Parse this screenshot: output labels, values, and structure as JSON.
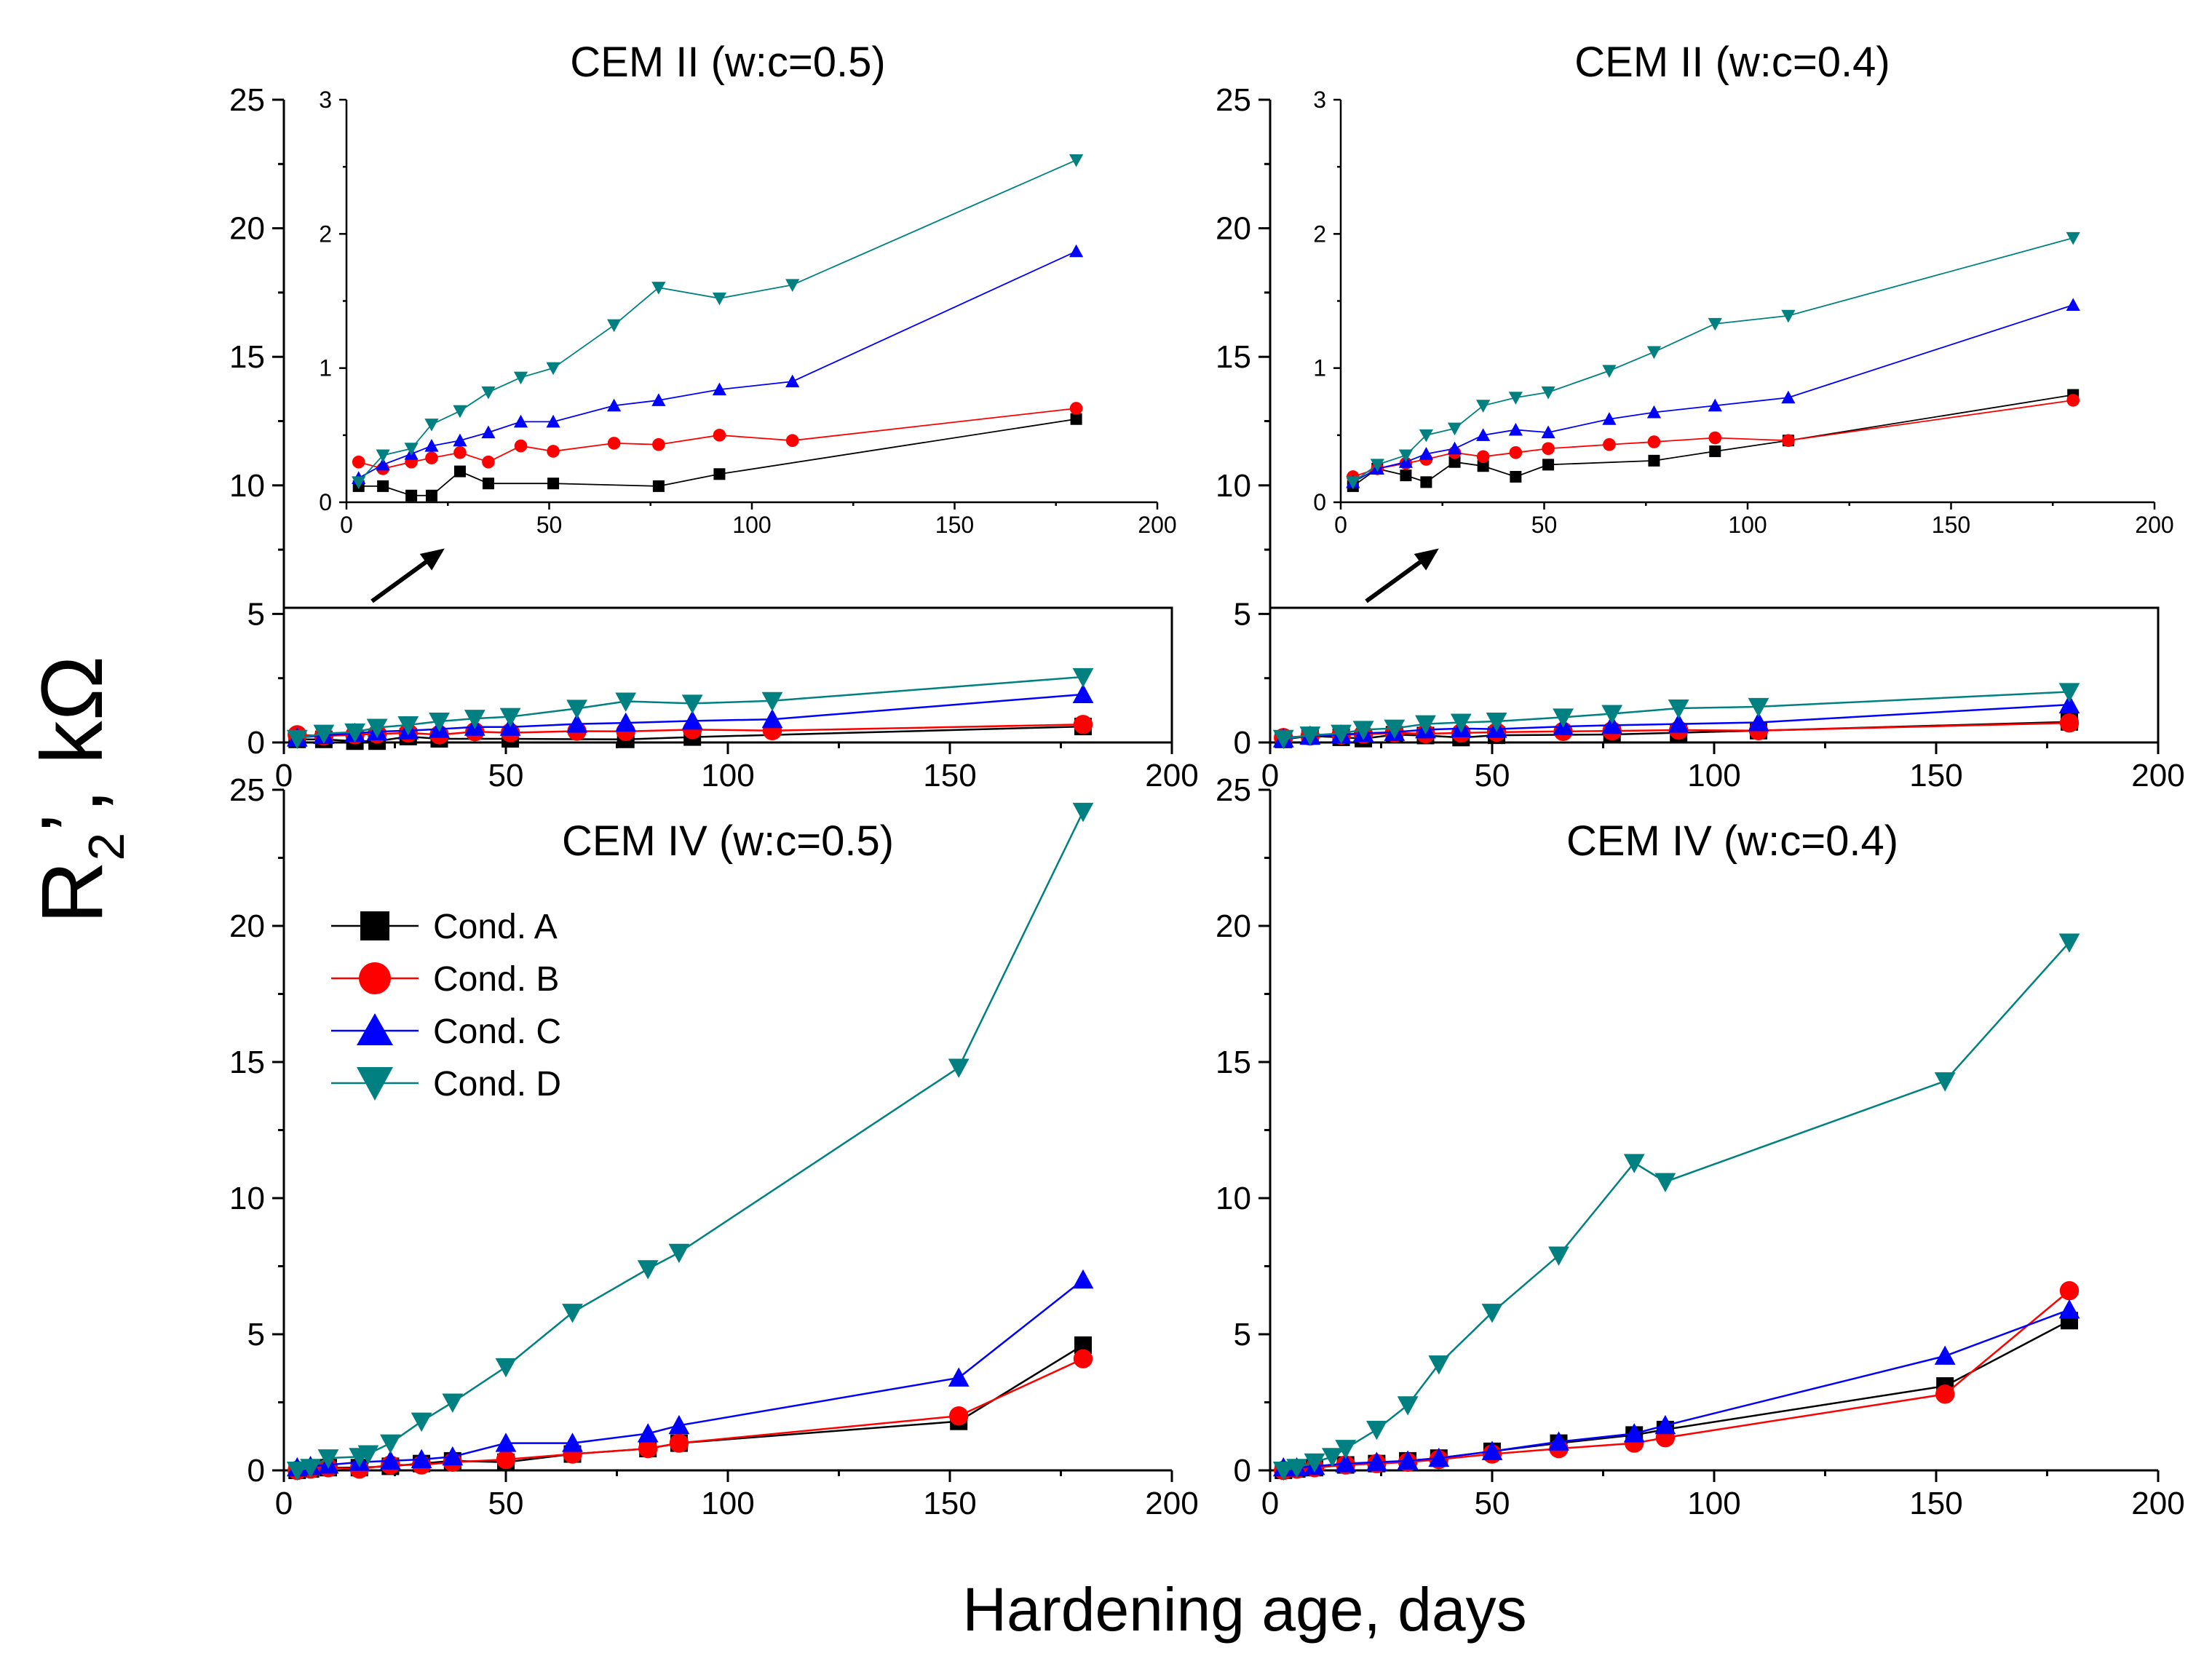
{
  "figure": {
    "xlabel": "Hardening age, days",
    "ylabel_main": "R",
    "ylabel_sub": "2",
    "ylabel_rest": "’, kΩ"
  },
  "legend": [
    {
      "label": "Cond. A",
      "color": "#000000",
      "marker": "square"
    },
    {
      "label": "Cond. B",
      "color": "#ff0000",
      "marker": "circle"
    },
    {
      "label": "Cond. C",
      "color": "#0000ff",
      "marker": "triangle-up"
    },
    {
      "label": "Cond. D",
      "color": "#008080",
      "marker": "triangle-down"
    }
  ],
  "chart_data": [
    {
      "type": "line",
      "title": "CEM II (w:c=0.5)",
      "xlabel": "Hardening age, days",
      "ylabel": "R2', kΩ",
      "xlim": [
        0,
        200
      ],
      "ylim": [
        0,
        25
      ],
      "xticks": [
        0,
        50,
        100,
        150,
        200
      ],
      "yticks": [
        0,
        5,
        10,
        15,
        20,
        25
      ],
      "series": [
        {
          "name": "Cond. A",
          "x": [
            3,
            9,
            16,
            21,
            28,
            35,
            51,
            77,
            92,
            180
          ],
          "y": [
            0.12,
            0.12,
            0.05,
            0.05,
            0.23,
            0.14,
            0.14,
            0.12,
            0.21,
            0.62
          ]
        },
        {
          "name": "Cond. B",
          "x": [
            3,
            9,
            16,
            21,
            28,
            35,
            43,
            51,
            66,
            77,
            92,
            110,
            180
          ],
          "y": [
            0.3,
            0.25,
            0.3,
            0.33,
            0.37,
            0.3,
            0.42,
            0.38,
            0.44,
            0.43,
            0.5,
            0.46,
            0.7
          ]
        },
        {
          "name": "Cond. C",
          "x": [
            3,
            9,
            16,
            21,
            28,
            35,
            43,
            51,
            66,
            77,
            92,
            110,
            180
          ],
          "y": [
            0.18,
            0.28,
            0.36,
            0.42,
            0.46,
            0.52,
            0.6,
            0.6,
            0.72,
            0.76,
            0.84,
            0.9,
            1.87
          ]
        },
        {
          "name": "Cond. D",
          "x": [
            3,
            9,
            16,
            21,
            28,
            35,
            43,
            51,
            66,
            77,
            92,
            110,
            180
          ],
          "y": [
            0.15,
            0.35,
            0.4,
            0.58,
            0.68,
            0.82,
            0.93,
            1.0,
            1.32,
            1.6,
            1.52,
            1.62,
            2.55
          ]
        }
      ],
      "inset": {
        "xlim": [
          0,
          200
        ],
        "ylim": [
          0,
          3
        ],
        "xticks": [
          0,
          50,
          100,
          150,
          200
        ],
        "yticks": [
          0,
          1,
          2,
          3
        ]
      }
    },
    {
      "type": "line",
      "title": "CEM II (w:c=0.4)",
      "xlabel": "Hardening age, days",
      "ylabel": "R2', kΩ",
      "xlim": [
        0,
        200
      ],
      "ylim": [
        0,
        25
      ],
      "xticks": [
        0,
        50,
        100,
        150,
        200
      ],
      "yticks": [
        0,
        5,
        10,
        15,
        20,
        25
      ],
      "series": [
        {
          "name": "Cond. A",
          "x": [
            3,
            9,
            16,
            21,
            28,
            35,
            43,
            51,
            77,
            92,
            110,
            180
          ],
          "y": [
            0.12,
            0.25,
            0.2,
            0.15,
            0.3,
            0.27,
            0.19,
            0.28,
            0.31,
            0.38,
            0.46,
            0.8
          ]
        },
        {
          "name": "Cond. B",
          "x": [
            3,
            9,
            16,
            21,
            28,
            35,
            43,
            51,
            66,
            77,
            92,
            110,
            180
          ],
          "y": [
            0.19,
            0.25,
            0.29,
            0.32,
            0.37,
            0.34,
            0.37,
            0.4,
            0.43,
            0.45,
            0.48,
            0.46,
            0.76
          ]
        },
        {
          "name": "Cond. C",
          "x": [
            3,
            9,
            16,
            21,
            28,
            35,
            43,
            51,
            66,
            77,
            92,
            110,
            180
          ],
          "y": [
            0.15,
            0.25,
            0.3,
            0.36,
            0.4,
            0.5,
            0.54,
            0.52,
            0.62,
            0.67,
            0.72,
            0.78,
            1.47
          ]
        },
        {
          "name": "Cond. D",
          "x": [
            3,
            9,
            16,
            21,
            28,
            35,
            43,
            51,
            66,
            77,
            92,
            110,
            180
          ],
          "y": [
            0.15,
            0.28,
            0.35,
            0.5,
            0.55,
            0.72,
            0.78,
            0.82,
            0.98,
            1.12,
            1.33,
            1.39,
            1.97
          ]
        }
      ],
      "inset": {
        "xlim": [
          0,
          200
        ],
        "ylim": [
          0,
          3
        ],
        "xticks": [
          0,
          50,
          100,
          150,
          200
        ],
        "yticks": [
          0,
          1,
          2,
          3
        ]
      }
    },
    {
      "type": "line",
      "title": "CEM IV (w:c=0.5)",
      "xlabel": "Hardening age, days",
      "ylabel": "R2', kΩ",
      "xlim": [
        0,
        200
      ],
      "ylim": [
        0,
        25
      ],
      "xticks": [
        0,
        50,
        100,
        150,
        200
      ],
      "yticks": [
        0,
        5,
        10,
        15,
        20,
        25
      ],
      "series": [
        {
          "name": "Cond. A",
          "x": [
            3,
            6,
            10,
            17,
            24,
            31,
            38,
            50,
            65,
            82,
            89,
            152,
            180
          ],
          "y": [
            0.0,
            0.05,
            0.1,
            0.1,
            0.15,
            0.25,
            0.35,
            0.3,
            0.6,
            0.8,
            1.0,
            1.8,
            4.6
          ]
        },
        {
          "name": "Cond. B",
          "x": [
            3,
            6,
            10,
            17,
            24,
            31,
            38,
            50,
            65,
            82,
            89,
            152,
            180
          ],
          "y": [
            0.0,
            0.05,
            0.1,
            0.05,
            0.2,
            0.2,
            0.3,
            0.4,
            0.6,
            0.8,
            1.0,
            2.0,
            4.1
          ]
        },
        {
          "name": "Cond. C",
          "x": [
            3,
            6,
            10,
            17,
            24,
            31,
            38,
            50,
            65,
            82,
            89,
            152,
            180
          ],
          "y": [
            0.1,
            0.15,
            0.2,
            0.3,
            0.35,
            0.4,
            0.5,
            1.0,
            1.0,
            1.35,
            1.65,
            3.4,
            7.0
          ]
        },
        {
          "name": "Cond. D",
          "x": [
            3,
            6,
            10,
            17,
            19,
            24,
            31,
            38,
            50,
            65,
            82,
            89,
            152,
            180
          ],
          "y": [
            0.0,
            0.1,
            0.45,
            0.5,
            0.6,
            1.0,
            1.8,
            2.5,
            3.8,
            5.8,
            7.4,
            8.0,
            14.8,
            24.2
          ]
        }
      ]
    },
    {
      "type": "line",
      "title": "CEM IV (w:c=0.4)",
      "xlabel": "Hardening age, days",
      "ylabel": "R2', kΩ",
      "xlim": [
        0,
        200
      ],
      "ylim": [
        0,
        25
      ],
      "xticks": [
        0,
        50,
        100,
        150,
        200
      ],
      "yticks": [
        0,
        5,
        10,
        15,
        20,
        25
      ],
      "series": [
        {
          "name": "Cond. A",
          "x": [
            3,
            6,
            10,
            17,
            24,
            31,
            38,
            50,
            65,
            82,
            89,
            152,
            180
          ],
          "y": [
            0.0,
            0.05,
            0.1,
            0.2,
            0.25,
            0.35,
            0.45,
            0.7,
            1.0,
            1.3,
            1.5,
            3.1,
            5.5
          ]
        },
        {
          "name": "Cond. B",
          "x": [
            3,
            6,
            10,
            17,
            24,
            31,
            38,
            50,
            65,
            82,
            89,
            152,
            180
          ],
          "y": [
            0.0,
            0.05,
            0.1,
            0.2,
            0.25,
            0.3,
            0.4,
            0.6,
            0.8,
            1.0,
            1.2,
            2.8,
            6.6
          ]
        },
        {
          "name": "Cond. C",
          "x": [
            3,
            6,
            10,
            17,
            24,
            31,
            38,
            50,
            65,
            82,
            89,
            152,
            180
          ],
          "y": [
            0.1,
            0.1,
            0.15,
            0.25,
            0.3,
            0.35,
            0.45,
            0.7,
            1.05,
            1.35,
            1.65,
            4.2,
            5.9
          ]
        },
        {
          "name": "Cond. D",
          "x": [
            3,
            6,
            10,
            14,
            17,
            24,
            31,
            38,
            50,
            65,
            82,
            89,
            152,
            180
          ],
          "y": [
            0.0,
            0.1,
            0.3,
            0.5,
            0.8,
            1.5,
            2.4,
            3.9,
            5.8,
            7.9,
            11.3,
            10.6,
            14.3,
            19.4
          ]
        }
      ]
    }
  ]
}
